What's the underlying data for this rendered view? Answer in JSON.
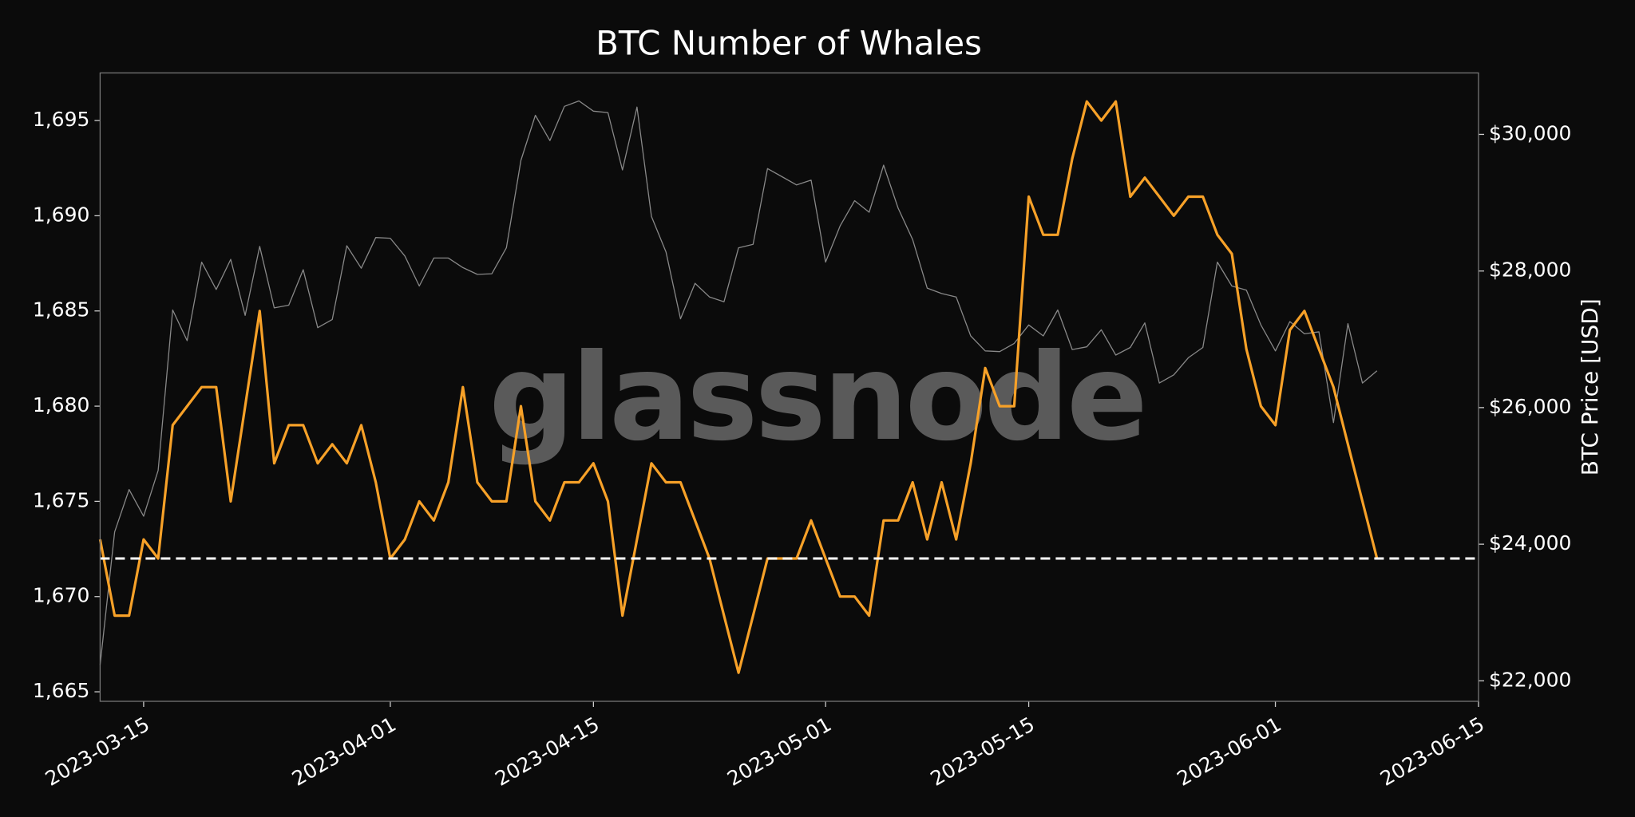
{
  "chart_data": {
    "type": "line",
    "title": "BTC Number of Whales",
    "y2label": "BTC Price [USD]",
    "watermark": "glassnode",
    "xlim": [
      "2023-03-12",
      "2023-06-15"
    ],
    "xticks": [
      "2023-03-15",
      "2023-04-01",
      "2023-04-15",
      "2023-05-01",
      "2023-05-15",
      "2023-06-01",
      "2023-06-15"
    ],
    "ylim": [
      1664.5,
      1697.5
    ],
    "yticks": [
      {
        "value": 1665,
        "label": "1,665"
      },
      {
        "value": 1670,
        "label": "1,670"
      },
      {
        "value": 1675,
        "label": "1,675"
      },
      {
        "value": 1680,
        "label": "1,680"
      },
      {
        "value": 1685,
        "label": "1,685"
      },
      {
        "value": 1690,
        "label": "1,690"
      },
      {
        "value": 1695,
        "label": "1,695"
      }
    ],
    "y2lim": [
      21700,
      30900
    ],
    "y2ticks": [
      {
        "value": 22000,
        "label": "$22,000"
      },
      {
        "value": 24000,
        "label": "$24,000"
      },
      {
        "value": 26000,
        "label": "$26,000"
      },
      {
        "value": 28000,
        "label": "$28,000"
      },
      {
        "value": 30000,
        "label": "$30,000"
      }
    ],
    "hline": {
      "value": 1672,
      "color": "#ffffff",
      "dashed": true
    },
    "x": [
      "2023-03-12",
      "2023-03-13",
      "2023-03-14",
      "2023-03-15",
      "2023-03-16",
      "2023-03-17",
      "2023-03-18",
      "2023-03-19",
      "2023-03-20",
      "2023-03-21",
      "2023-03-22",
      "2023-03-23",
      "2023-03-24",
      "2023-03-25",
      "2023-03-26",
      "2023-03-27",
      "2023-03-28",
      "2023-03-29",
      "2023-03-30",
      "2023-03-31",
      "2023-04-01",
      "2023-04-02",
      "2023-04-03",
      "2023-04-04",
      "2023-04-05",
      "2023-04-06",
      "2023-04-07",
      "2023-04-08",
      "2023-04-09",
      "2023-04-10",
      "2023-04-11",
      "2023-04-12",
      "2023-04-13",
      "2023-04-14",
      "2023-04-15",
      "2023-04-16",
      "2023-04-17",
      "2023-04-18",
      "2023-04-19",
      "2023-04-20",
      "2023-04-21",
      "2023-04-22",
      "2023-04-23",
      "2023-04-24",
      "2023-04-25",
      "2023-04-26",
      "2023-04-27",
      "2023-04-28",
      "2023-04-29",
      "2023-04-30",
      "2023-05-01",
      "2023-05-02",
      "2023-05-03",
      "2023-05-04",
      "2023-05-05",
      "2023-05-06",
      "2023-05-07",
      "2023-05-08",
      "2023-05-09",
      "2023-05-10",
      "2023-05-11",
      "2023-05-12",
      "2023-05-13",
      "2023-05-14",
      "2023-05-15",
      "2023-05-16",
      "2023-05-17",
      "2023-05-18",
      "2023-05-19",
      "2023-05-20",
      "2023-05-21",
      "2023-05-22",
      "2023-05-23",
      "2023-05-24",
      "2023-05-25",
      "2023-05-26",
      "2023-05-27",
      "2023-05-28",
      "2023-05-29",
      "2023-05-30",
      "2023-05-31",
      "2023-06-01",
      "2023-06-02",
      "2023-06-03",
      "2023-06-04",
      "2023-06-05",
      "2023-06-06",
      "2023-06-07",
      "2023-06-08"
    ],
    "series": [
      {
        "color": "#888888",
        "axis": "y2",
        "values": [
          22230,
          24180,
          24800,
          24410,
          25080,
          27430,
          26980,
          28130,
          27730,
          28170,
          27350,
          28360,
          27460,
          27500,
          28020,
          27170,
          27290,
          28370,
          28040,
          28490,
          28480,
          28220,
          27780,
          28190,
          28190,
          28050,
          27950,
          27960,
          28340,
          29620,
          30280,
          29910,
          30410,
          30490,
          30340,
          30320,
          29480,
          30400,
          28800,
          28280,
          27300,
          27820,
          27620,
          27550,
          28340,
          28390,
          29500,
          29380,
          29260,
          29330,
          28130,
          28660,
          29030,
          28860,
          29550,
          28920,
          28460,
          27750,
          27670,
          27620,
          27050,
          26830,
          26820,
          26940,
          27210,
          27050,
          27430,
          26850,
          26890,
          27140,
          26770,
          26880,
          27240,
          26360,
          26480,
          26730,
          26880,
          28130,
          27780,
          27720,
          27210,
          26830,
          27260,
          27080,
          27110,
          25780,
          27230,
          26360,
          26540
        ]
      },
      {
        "color": "#f7a128",
        "axis": "y",
        "values": [
          1673,
          1669,
          1669,
          1673,
          1672,
          1679,
          1680,
          1681,
          1681,
          1675,
          1680,
          1685,
          1677,
          1679,
          1679,
          1677,
          1678,
          1677,
          1679,
          1676,
          1672,
          1673,
          1675,
          1674,
          1676,
          1681,
          1676,
          1675,
          1675,
          1680,
          1675,
          1674,
          1676,
          1676,
          1677,
          1675,
          1669,
          1673,
          1677,
          1676,
          1676,
          1674,
          1672,
          1669,
          1666,
          1669,
          1672,
          1672,
          1672,
          1674,
          1672,
          1670,
          1670,
          1669,
          1674,
          1674,
          1676,
          1673,
          1676,
          1673,
          1677,
          1682,
          1680,
          1680,
          1691,
          1689,
          1689,
          1693,
          1696,
          1695,
          1696,
          1691,
          1692,
          1691,
          1690,
          1691,
          1691,
          1689,
          1688,
          1683,
          1680,
          1679,
          1684,
          1685,
          1683,
          1681,
          1678,
          1675,
          1672
        ]
      }
    ]
  }
}
